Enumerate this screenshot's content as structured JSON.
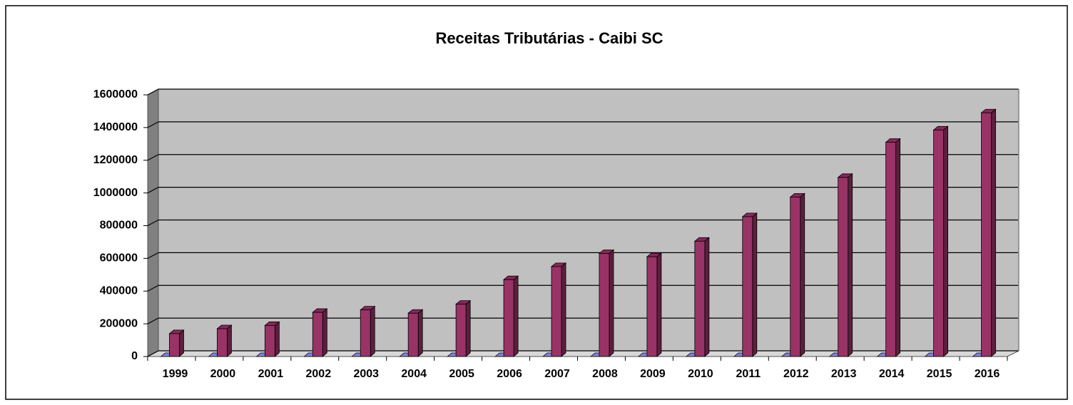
{
  "chart_data": {
    "type": "bar3d",
    "title": "Receitas Tributárias - Caibi SC",
    "categories": [
      "1999",
      "2000",
      "2001",
      "2002",
      "2003",
      "2004",
      "2005",
      "2006",
      "2007",
      "2008",
      "2009",
      "2010",
      "2011",
      "2012",
      "2013",
      "2014",
      "2015",
      "2016"
    ],
    "series": [
      {
        "color": "#9999ff",
        "values": [
          0,
          0,
          0,
          0,
          0,
          0,
          0,
          0,
          0,
          0,
          0,
          0,
          0,
          0,
          0,
          0,
          0,
          0
        ]
      },
      {
        "color": "#993366",
        "values": [
          140000,
          170000,
          190000,
          270000,
          285000,
          265000,
          320000,
          470000,
          550000,
          630000,
          610000,
          705000,
          855000,
          975000,
          1095000,
          1310000,
          1385000,
          1490000
        ]
      }
    ],
    "ylim": [
      0,
      1600000
    ],
    "yticks": [
      0,
      200000,
      400000,
      600000,
      800000,
      1000000,
      1200000,
      1400000,
      1600000
    ],
    "grid": true
  }
}
